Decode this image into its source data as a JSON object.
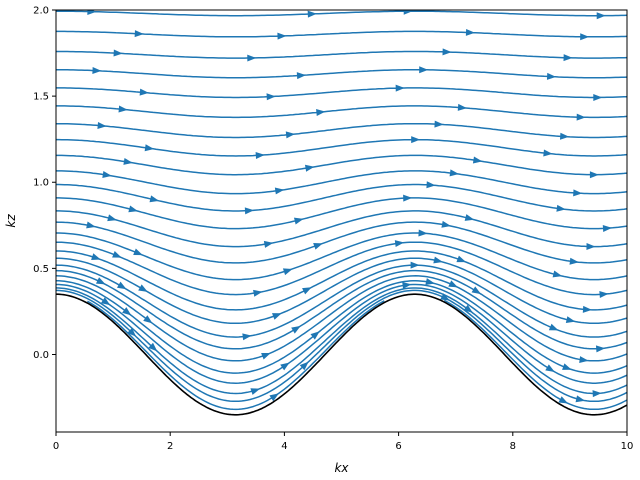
{
  "chart_data": {
    "type": "streamplot",
    "title": "",
    "xlabel": "kx",
    "ylabel": "kz",
    "xlim": [
      0,
      10
    ],
    "ylim": [
      -0.45,
      2.0
    ],
    "xticks": [
      0,
      2,
      4,
      6,
      8,
      10
    ],
    "xtick_labels": [
      "0",
      "2",
      "4",
      "6",
      "8",
      "10"
    ],
    "yticks": [
      0.0,
      0.5,
      1.0,
      1.5,
      2.0
    ],
    "ytick_labels": [
      "0.0",
      "0.5",
      "1.0",
      "1.5",
      "2.0"
    ],
    "grid": false,
    "colors": {
      "streamline": "#1f77b4",
      "boundary": "#000000"
    },
    "boundary": {
      "function": "amplitude*cos(kx)",
      "amplitude": 0.35
    },
    "stream_baselines_kz": [
      -0.02,
      0.02,
      0.05,
      0.08,
      0.12,
      0.16,
      0.21,
      0.26,
      0.31,
      0.37,
      0.43,
      0.5,
      0.57,
      0.65,
      0.73,
      0.82,
      0.91,
      1.0,
      1.1,
      1.2,
      1.3,
      1.41,
      1.52,
      1.63,
      1.74,
      1.86,
      1.98
    ],
    "stream_decay_scale": 0.6
  }
}
